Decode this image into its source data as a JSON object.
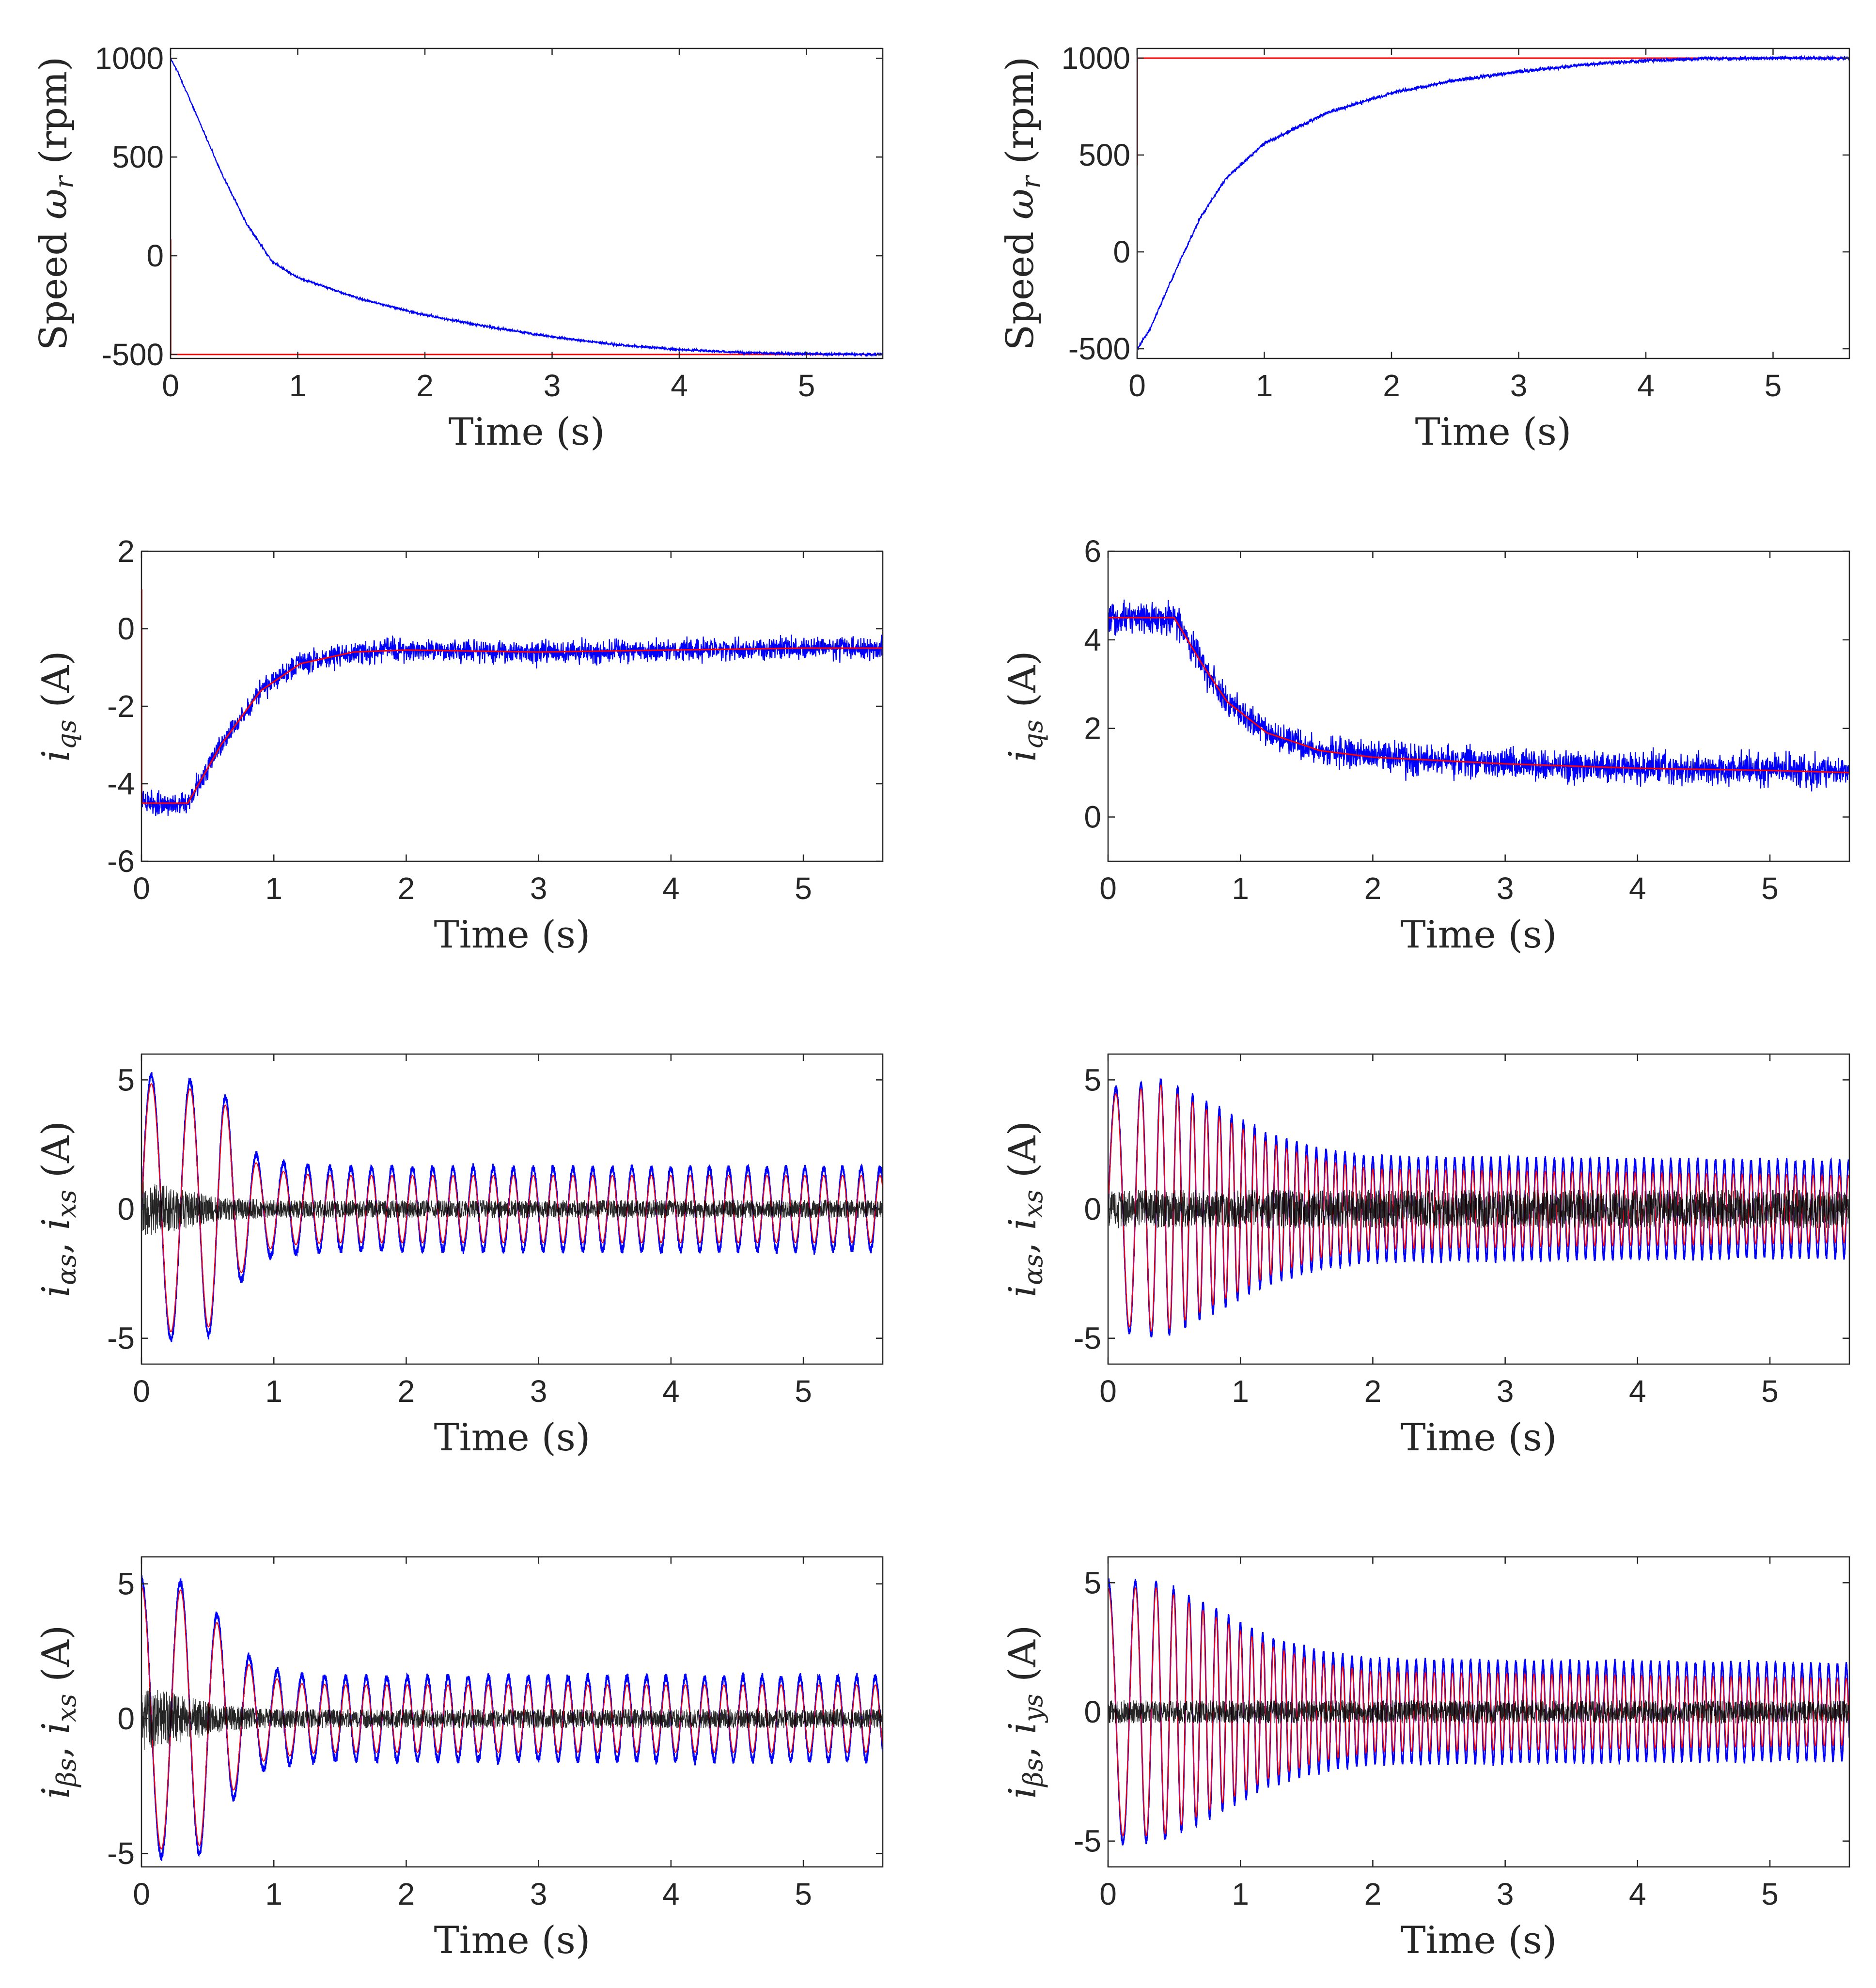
{
  "figure": {
    "colors": {
      "reference": "#ff0000",
      "measured": "#0000ff",
      "secondary": "#000000",
      "axis": "#262626"
    }
  },
  "chart_data": [
    {
      "id": "speed-left",
      "type": "line",
      "xlabel": "Time (s)",
      "ylabel": "Speed ω_r (rpm)",
      "xlim": [
        0,
        5.6
      ],
      "ylim": [
        -520,
        1050
      ],
      "xticks": [
        "0",
        "1",
        "2",
        "3",
        "4",
        "5"
      ],
      "xtick_values": [
        0,
        1,
        2,
        3,
        4,
        5
      ],
      "yticks": [
        "-500",
        "0",
        "500",
        "1000"
      ],
      "ytick_values": [
        -500,
        0,
        500,
        1000
      ],
      "series": [
        {
          "name": "reference",
          "color": "#ff0000",
          "kind": "sampled",
          "noise": 0,
          "x": [
            0,
            0.001,
            0.001,
            5.6
          ],
          "y": [
            80,
            80,
            -500,
            -500
          ]
        },
        {
          "name": "measured",
          "color": "#0000ff",
          "kind": "sampled",
          "noise": 6,
          "x": [
            0,
            0.05,
            0.2,
            0.4,
            0.6,
            0.8,
            1.0,
            1.5,
            2.0,
            2.5,
            3.0,
            3.5,
            4.0,
            4.5,
            5.0,
            5.6
          ],
          "y": [
            1000,
            940,
            720,
            420,
            160,
            -30,
            -110,
            -220,
            -300,
            -360,
            -410,
            -450,
            -475,
            -490,
            -497,
            -500
          ]
        }
      ]
    },
    {
      "id": "speed-right",
      "type": "line",
      "xlabel": "Time (s)",
      "ylabel": "Speed ω_r (rpm)",
      "xlim": [
        0,
        5.6
      ],
      "ylim": [
        -550,
        1050
      ],
      "xticks": [
        "0",
        "1",
        "2",
        "3",
        "4",
        "5"
      ],
      "xtick_values": [
        0,
        1,
        2,
        3,
        4,
        5
      ],
      "yticks": [
        "-500",
        "0",
        "500",
        "1000"
      ],
      "ytick_values": [
        -500,
        0,
        500,
        1000
      ],
      "series": [
        {
          "name": "reference",
          "color": "#ff0000",
          "kind": "sampled",
          "noise": 0,
          "x": [
            0,
            0.001,
            0.001,
            5.6
          ],
          "y": [
            450,
            450,
            1000,
            1000
          ]
        },
        {
          "name": "measured",
          "color": "#0000ff",
          "kind": "sampled",
          "noise": 10,
          "x": [
            0,
            0.1,
            0.3,
            0.5,
            0.7,
            1.0,
            1.5,
            2.0,
            2.5,
            3.0,
            3.5,
            4.0,
            4.5,
            5.0,
            5.6
          ],
          "y": [
            -500,
            -400,
            -100,
            180,
            380,
            560,
            720,
            820,
            885,
            930,
            965,
            988,
            998,
            1000,
            1000
          ]
        }
      ]
    },
    {
      "id": "iqs-left",
      "type": "line",
      "xlabel": "Time (s)",
      "ylabel": "i_qs (A)",
      "xlim": [
        0,
        5.6
      ],
      "ylim": [
        -6,
        2
      ],
      "xticks": [
        "0",
        "1",
        "2",
        "3",
        "4",
        "5"
      ],
      "xtick_values": [
        0,
        1,
        2,
        3,
        4,
        5
      ],
      "yticks": [
        "-6",
        "-4",
        "-2",
        "0",
        "2"
      ],
      "ytick_values": [
        -6,
        -4,
        -2,
        0,
        2
      ],
      "series": [
        {
          "name": "measured",
          "color": "#0000ff",
          "kind": "sampled",
          "noise": 0.32,
          "x": [
            0,
            0.35,
            0.6,
            0.9,
            1.2,
            1.6,
            2.0,
            3.0,
            4.0,
            5.0,
            5.6
          ],
          "y": [
            -4.5,
            -4.5,
            -3.0,
            -1.6,
            -0.9,
            -0.6,
            -0.55,
            -0.6,
            -0.55,
            -0.5,
            -0.5
          ]
        },
        {
          "name": "reference",
          "color": "#ff0000",
          "kind": "sampled",
          "noise": 0,
          "x": [
            0,
            0.002,
            0.002,
            0.35,
            0.6,
            0.9,
            1.2,
            1.6,
            2.0,
            3.0,
            4.0,
            5.0,
            5.6
          ],
          "y": [
            1.0,
            1.0,
            -4.5,
            -4.5,
            -3.0,
            -1.6,
            -0.9,
            -0.6,
            -0.55,
            -0.6,
            -0.55,
            -0.5,
            -0.5
          ]
        }
      ]
    },
    {
      "id": "iqs-right",
      "type": "line",
      "xlabel": "Time (s)",
      "ylabel": "i_qs (A)",
      "xlim": [
        0,
        5.6
      ],
      "ylim": [
        -1,
        6
      ],
      "xticks": [
        "0",
        "1",
        "2",
        "3",
        "4",
        "5"
      ],
      "xtick_values": [
        0,
        1,
        2,
        3,
        4,
        5
      ],
      "yticks": [
        "0",
        "2",
        "4",
        "6"
      ],
      "ytick_values": [
        0,
        2,
        4,
        6
      ],
      "series": [
        {
          "name": "measured",
          "color": "#0000ff",
          "kind": "sampled",
          "noise": 0.38,
          "x": [
            0,
            0.5,
            0.7,
            0.9,
            1.2,
            1.6,
            2.0,
            3.0,
            4.0,
            5.0,
            5.6
          ],
          "y": [
            4.5,
            4.5,
            3.5,
            2.6,
            1.9,
            1.5,
            1.35,
            1.2,
            1.1,
            1.05,
            1.0
          ]
        },
        {
          "name": "reference",
          "color": "#ff0000",
          "kind": "sampled",
          "noise": 0,
          "x": [
            0,
            0.5,
            0.7,
            0.9,
            1.2,
            1.6,
            2.0,
            3.0,
            4.0,
            5.0,
            5.6
          ],
          "y": [
            4.5,
            4.5,
            3.5,
            2.6,
            1.9,
            1.5,
            1.35,
            1.2,
            1.1,
            1.05,
            1.0
          ]
        }
      ]
    },
    {
      "id": "ialpha-left",
      "type": "line",
      "xlabel": "Time (s)",
      "ylabel": "i_αs, i_xs (A)",
      "xlim": [
        0,
        5.6
      ],
      "ylim": [
        -6,
        6
      ],
      "xticks": [
        "0",
        "1",
        "2",
        "3",
        "4",
        "5"
      ],
      "xtick_values": [
        0,
        1,
        2,
        3,
        4,
        5
      ],
      "yticks": [
        "-5",
        "0",
        "5"
      ],
      "ytick_values": [
        -5,
        0,
        5
      ],
      "series": [
        {
          "name": "measured",
          "color": "#0000ff",
          "kind": "sine",
          "phase": 0,
          "noise": 0.15,
          "width": 3,
          "freq_t": [
            0,
            0.5,
            1.0,
            1.5,
            5.6
          ],
          "freq_v": [
            3.3,
            3.6,
            5.0,
            6.4,
            7.1
          ],
          "amp_t": [
            0,
            0.6,
            0.75,
            0.9,
            1.2,
            1.5,
            5.6
          ],
          "amp_v": [
            5.2,
            4.8,
            2.8,
            1.9,
            1.7,
            1.6,
            1.6
          ]
        },
        {
          "name": "reference",
          "color": "#ff0000",
          "kind": "sine",
          "phase": 0,
          "noise": 0,
          "width": 2,
          "freq_t": [
            0,
            0.5,
            1.0,
            1.5,
            5.6
          ],
          "freq_v": [
            3.3,
            3.6,
            5.0,
            6.4,
            7.1
          ],
          "amp_t": [
            0,
            0.6,
            0.75,
            0.9,
            1.2,
            1.5,
            5.6
          ],
          "amp_v": [
            4.9,
            4.5,
            2.5,
            1.6,
            1.35,
            1.3,
            1.3
          ]
        },
        {
          "name": "secondary",
          "color": "#000000",
          "kind": "noise",
          "amp_t": [
            0,
            0.3,
            0.6,
            1.0,
            5.6
          ],
          "amp_v": [
            1.1,
            0.8,
            0.45,
            0.35,
            0.35
          ]
        }
      ]
    },
    {
      "id": "ialpha-right",
      "type": "line",
      "xlabel": "Time (s)",
      "ylabel": "i_αs, i_xs (A)",
      "xlim": [
        0,
        5.6
      ],
      "ylim": [
        -6,
        6
      ],
      "xticks": [
        "0",
        "1",
        "2",
        "3",
        "4",
        "5"
      ],
      "xtick_values": [
        0,
        1,
        2,
        3,
        4,
        5
      ],
      "yticks": [
        "-5",
        "0",
        "5"
      ],
      "ytick_values": [
        -5,
        0,
        5
      ],
      "series": [
        {
          "name": "measured",
          "color": "#0000ff",
          "kind": "sine",
          "phase": 0,
          "noise": 0.12,
          "width": 3,
          "freq_t": [
            0,
            0.3,
            0.6,
            1.0,
            1.5,
            2.0,
            5.6
          ],
          "freq_v": [
            4.0,
            6.5,
            9.0,
            11.5,
            13.5,
            14.5,
            15.0
          ],
          "amp_t": [
            0,
            0.4,
            0.8,
            1.2,
            1.6,
            2.0,
            5.6
          ],
          "amp_v": [
            4.6,
            5.0,
            4.0,
            2.9,
            2.3,
            2.0,
            1.85
          ]
        },
        {
          "name": "reference",
          "color": "#ff0000",
          "kind": "sine",
          "phase": 0,
          "noise": 0,
          "width": 2,
          "freq_t": [
            0,
            0.3,
            0.6,
            1.0,
            1.5,
            2.0,
            5.6
          ],
          "freq_v": [
            4.0,
            6.5,
            9.0,
            11.5,
            13.5,
            14.5,
            15.0
          ],
          "amp_t": [
            0,
            0.4,
            0.8,
            1.2,
            1.6,
            2.0,
            5.6
          ],
          "amp_v": [
            4.4,
            4.8,
            3.7,
            2.6,
            1.9,
            1.55,
            1.3
          ]
        },
        {
          "name": "secondary",
          "color": "#000000",
          "kind": "noise",
          "amp_t": [
            0,
            5.6
          ],
          "amp_v": [
            0.75,
            0.75
          ]
        }
      ]
    },
    {
      "id": "ibeta-left",
      "type": "line",
      "xlabel": "Time (s)",
      "ylabel": "i_βs, i_xs (A)",
      "xlim": [
        0,
        5.6
      ],
      "ylim": [
        -5.5,
        6
      ],
      "xticks": [
        "0",
        "1",
        "2",
        "3",
        "4",
        "5"
      ],
      "xtick_values": [
        0,
        1,
        2,
        3,
        4,
        5
      ],
      "yticks": [
        "-5",
        "0",
        "5"
      ],
      "ytick_values": [
        -5,
        0,
        5
      ],
      "series": [
        {
          "name": "measured",
          "color": "#0000ff",
          "kind": "sine",
          "phase": 1.5708,
          "noise": 0.15,
          "width": 3,
          "freq_t": [
            0,
            0.5,
            1.0,
            1.5,
            5.6
          ],
          "freq_v": [
            3.3,
            3.6,
            5.0,
            6.4,
            7.1
          ],
          "amp_t": [
            0,
            0.45,
            0.6,
            0.75,
            0.9,
            1.2,
            1.5,
            5.6
          ],
          "amp_v": [
            5.2,
            5.0,
            3.6,
            2.6,
            1.9,
            1.6,
            1.55,
            1.55
          ]
        },
        {
          "name": "reference",
          "color": "#ff0000",
          "kind": "sine",
          "phase": 1.5708,
          "noise": 0,
          "width": 2,
          "freq_t": [
            0,
            0.5,
            1.0,
            1.5,
            5.6
          ],
          "freq_v": [
            3.3,
            3.6,
            5.0,
            6.4,
            7.1
          ],
          "amp_t": [
            0,
            0.45,
            0.6,
            0.75,
            0.9,
            1.2,
            1.5,
            5.6
          ],
          "amp_v": [
            4.9,
            4.7,
            3.3,
            2.3,
            1.6,
            1.3,
            1.25,
            1.25
          ]
        },
        {
          "name": "secondary",
          "color": "#000000",
          "kind": "noise",
          "amp_t": [
            0,
            0.3,
            0.6,
            1.0,
            5.6
          ],
          "amp_v": [
            1.2,
            0.9,
            0.5,
            0.35,
            0.35
          ]
        }
      ]
    },
    {
      "id": "ibeta-right",
      "type": "line",
      "xlabel": "Time (s)",
      "ylabel": "i_βs, i_ys (A)",
      "xlim": [
        0,
        5.6
      ],
      "ylim": [
        -6,
        6
      ],
      "xticks": [
        "0",
        "1",
        "2",
        "3",
        "4",
        "5"
      ],
      "xtick_values": [
        0,
        1,
        2,
        3,
        4,
        5
      ],
      "yticks": [
        "-5",
        "0",
        "5"
      ],
      "ytick_values": [
        -5,
        0,
        5
      ],
      "series": [
        {
          "name": "measured",
          "color": "#0000ff",
          "kind": "sine",
          "phase": 1.5708,
          "noise": 0.12,
          "width": 3,
          "freq_t": [
            0,
            0.3,
            0.6,
            1.0,
            1.5,
            2.0,
            5.6
          ],
          "freq_v": [
            4.0,
            6.5,
            9.0,
            11.5,
            13.5,
            14.5,
            15.0
          ],
          "amp_t": [
            0,
            0.4,
            0.8,
            1.2,
            1.6,
            2.0,
            5.6
          ],
          "amp_v": [
            5.1,
            5.0,
            4.0,
            2.9,
            2.3,
            2.0,
            1.85
          ]
        },
        {
          "name": "reference",
          "color": "#ff0000",
          "kind": "sine",
          "phase": 1.5708,
          "noise": 0,
          "width": 2,
          "freq_t": [
            0,
            0.3,
            0.6,
            1.0,
            1.5,
            2.0,
            5.6
          ],
          "freq_v": [
            4.0,
            6.5,
            9.0,
            11.5,
            13.5,
            14.5,
            15.0
          ],
          "amp_t": [
            0,
            0.4,
            0.8,
            1.2,
            1.6,
            2.0,
            5.6
          ],
          "amp_v": [
            4.8,
            4.8,
            3.7,
            2.6,
            1.9,
            1.55,
            1.3
          ]
        },
        {
          "name": "secondary",
          "color": "#000000",
          "kind": "noise",
          "amp_t": [
            0,
            5.6
          ],
          "amp_v": [
            0.45,
            0.45
          ]
        }
      ]
    }
  ]
}
